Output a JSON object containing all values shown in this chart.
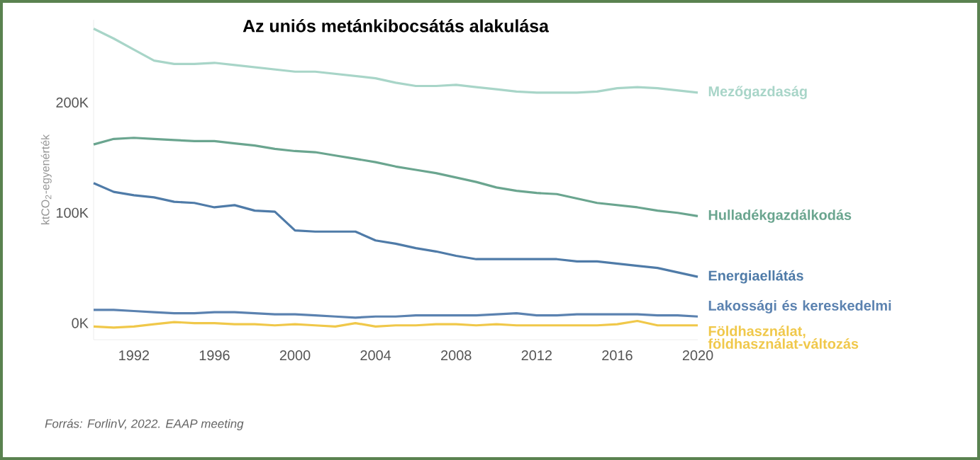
{
  "chart_data": {
    "type": "line",
    "title": "Az uniós metánkibocsátás alakulása",
    "ylabel": "ktCO$_{2}$-egyenérték",
    "annotations": [
      "Forrás: ForlinV, 2022. EAAP meeting"
    ],
    "x": [
      1990,
      1991,
      1992,
      1993,
      1994,
      1995,
      1996,
      1997,
      1998,
      1999,
      2000,
      2001,
      2002,
      2003,
      2004,
      2005,
      2006,
      2007,
      2008,
      2009,
      2010,
      2011,
      2012,
      2013,
      2014,
      2015,
      2016,
      2017,
      2018,
      2019,
      2020
    ],
    "xlim": [
      1990,
      2020
    ],
    "xticks": [
      1992,
      1996,
      2000,
      2004,
      2008,
      2012,
      2016,
      2020
    ],
    "ylim": [
      -15,
      275
    ],
    "yticks": [
      {
        "value": 0,
        "label": "0K"
      },
      {
        "value": 100,
        "label": "100K"
      },
      {
        "value": 200,
        "label": "200K"
      }
    ],
    "grid": false,
    "marker": "none",
    "line_style": "solid",
    "series": [
      {
        "name": "Mezőgazdaság",
        "color": "#a8d5c8",
        "values": [
          267,
          258,
          248,
          238,
          235,
          235,
          236,
          234,
          232,
          230,
          228,
          228,
          226,
          224,
          222,
          218,
          215,
          215,
          216,
          214,
          212,
          210,
          209,
          209,
          209,
          210,
          213,
          214,
          213,
          211,
          209
        ]
      },
      {
        "name": "Hulladékgazdálkodás",
        "color": "#6aa58f",
        "values": [
          162,
          167,
          168,
          167,
          166,
          165,
          165,
          163,
          161,
          158,
          156,
          155,
          152,
          149,
          146,
          142,
          139,
          136,
          132,
          128,
          123,
          120,
          118,
          117,
          113,
          109,
          107,
          105,
          102,
          100,
          97
        ]
      },
      {
        "name": "Energiaellátás",
        "color": "#4f7ba8",
        "values": [
          127,
          119,
          116,
          114,
          110,
          109,
          105,
          107,
          102,
          101,
          84,
          83,
          83,
          83,
          75,
          72,
          68,
          65,
          61,
          58,
          58,
          58,
          58,
          58,
          56,
          56,
          54,
          52,
          50,
          46,
          42
        ]
      },
      {
        "name": "Lakossági és kereskedelmi",
        "color": "#5b82b0",
        "values": [
          12,
          12,
          11,
          10,
          9,
          9,
          10,
          10,
          9,
          8,
          8,
          7,
          6,
          5,
          6,
          6,
          7,
          7,
          7,
          7,
          8,
          9,
          7,
          7,
          8,
          8,
          8,
          8,
          7,
          7,
          6
        ]
      },
      {
        "name": "Földhasználat, földhasználat-változás",
        "color": "#f0c84a",
        "values": [
          -3,
          -4,
          -3,
          -1,
          1,
          0,
          0,
          -1,
          -1,
          -2,
          -1,
          -2,
          -3,
          0,
          -3,
          -2,
          -2,
          -1,
          -1,
          -2,
          -1,
          -2,
          -2,
          -2,
          -2,
          -2,
          -1,
          2,
          -2,
          -2,
          -2
        ]
      }
    ]
  }
}
